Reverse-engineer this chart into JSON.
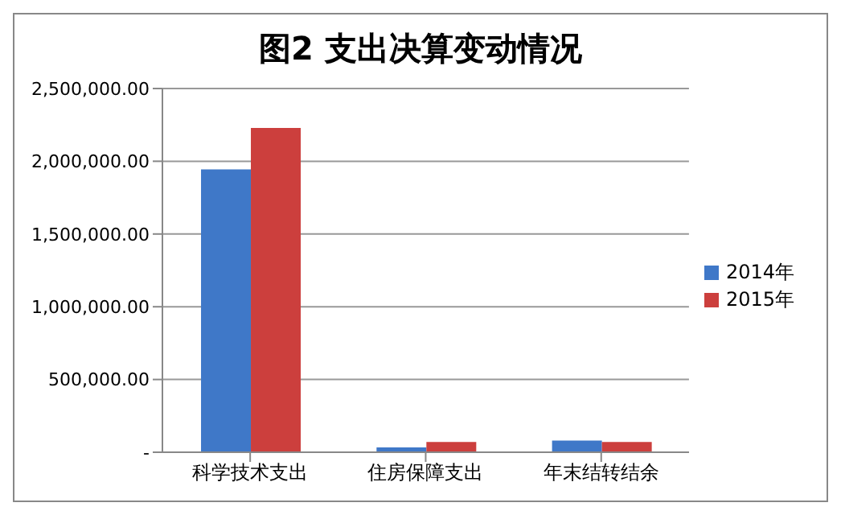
{
  "chart_data": {
    "type": "bar",
    "title": "图2 支出决算变动情况",
    "categories": [
      "科学技术支出",
      "住房保障支出",
      "年末结转结余"
    ],
    "series": [
      {
        "name": "2014年",
        "color": "#3f78c8",
        "values": [
          1944000,
          33000,
          80000
        ]
      },
      {
        "name": "2015年",
        "color": "#cc3f3d",
        "values": [
          2229000,
          70000,
          70000
        ]
      }
    ],
    "ylim": [
      0,
      2500000
    ],
    "yticks": [
      {
        "value": 0,
        "label": "-"
      },
      {
        "value": 500000,
        "label": "500,000.00"
      },
      {
        "value": 1000000,
        "label": "1,000,000.00"
      },
      {
        "value": 1500000,
        "label": "1,500,000.00"
      },
      {
        "value": 2000000,
        "label": "2,000,000.00"
      },
      {
        "value": 2500000,
        "label": "2,500,000.00"
      }
    ],
    "grid": "y",
    "legend": "right"
  }
}
